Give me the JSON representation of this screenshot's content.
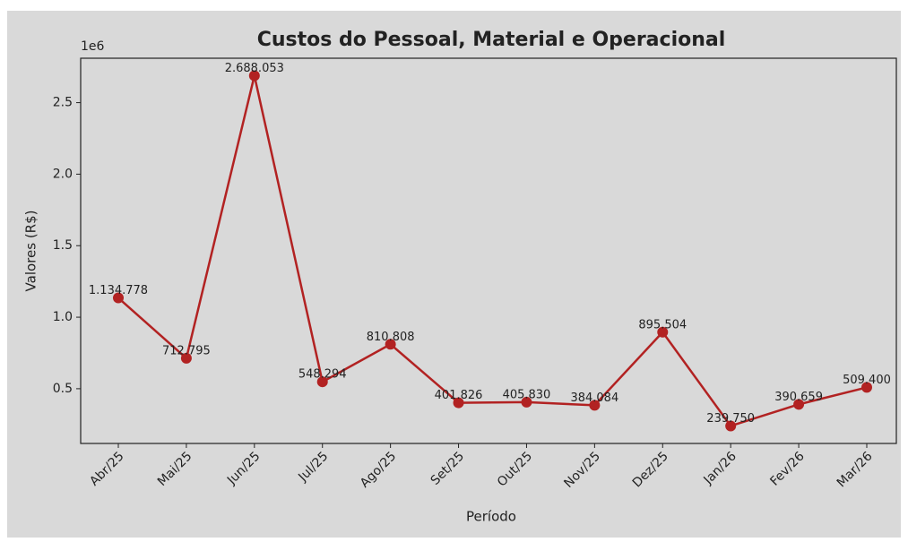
{
  "chart_data": {
    "type": "line",
    "title": "Custos do Pessoal, Material e Operacional",
    "x_label": "Período",
    "y_label": "Valores (R$)",
    "y_offset_label": "1e6",
    "categories": [
      "Abr/25",
      "Mai/25",
      "Jun/25",
      "Jul/25",
      "Ago/25",
      "Set/25",
      "Out/25",
      "Nov/25",
      "Dez/25",
      "Jan/26",
      "Fev/26",
      "Mar/26"
    ],
    "series": [
      {
        "name": "Custos",
        "color": "#b22222",
        "values": [
          1134778,
          712795,
          2688053,
          548294,
          810808,
          401826,
          405830,
          384084,
          895504,
          239750,
          390659,
          509400
        ],
        "value_labels": [
          "1.134.778",
          "712.795",
          "2.688.053",
          "548.294",
          "810.808",
          "401.826",
          "405.830",
          "384.084",
          "895.504",
          "239.750",
          "390.659",
          "509.400"
        ]
      }
    ],
    "ylim": [
      117335,
      2810468
    ],
    "yticks": [
      {
        "value": 500000,
        "label": "0.5"
      },
      {
        "value": 1000000,
        "label": "1.0"
      },
      {
        "value": 1500000,
        "label": "1.5"
      },
      {
        "value": 2000000,
        "label": "2.0"
      },
      {
        "value": 2500000,
        "label": "2.5"
      }
    ]
  }
}
